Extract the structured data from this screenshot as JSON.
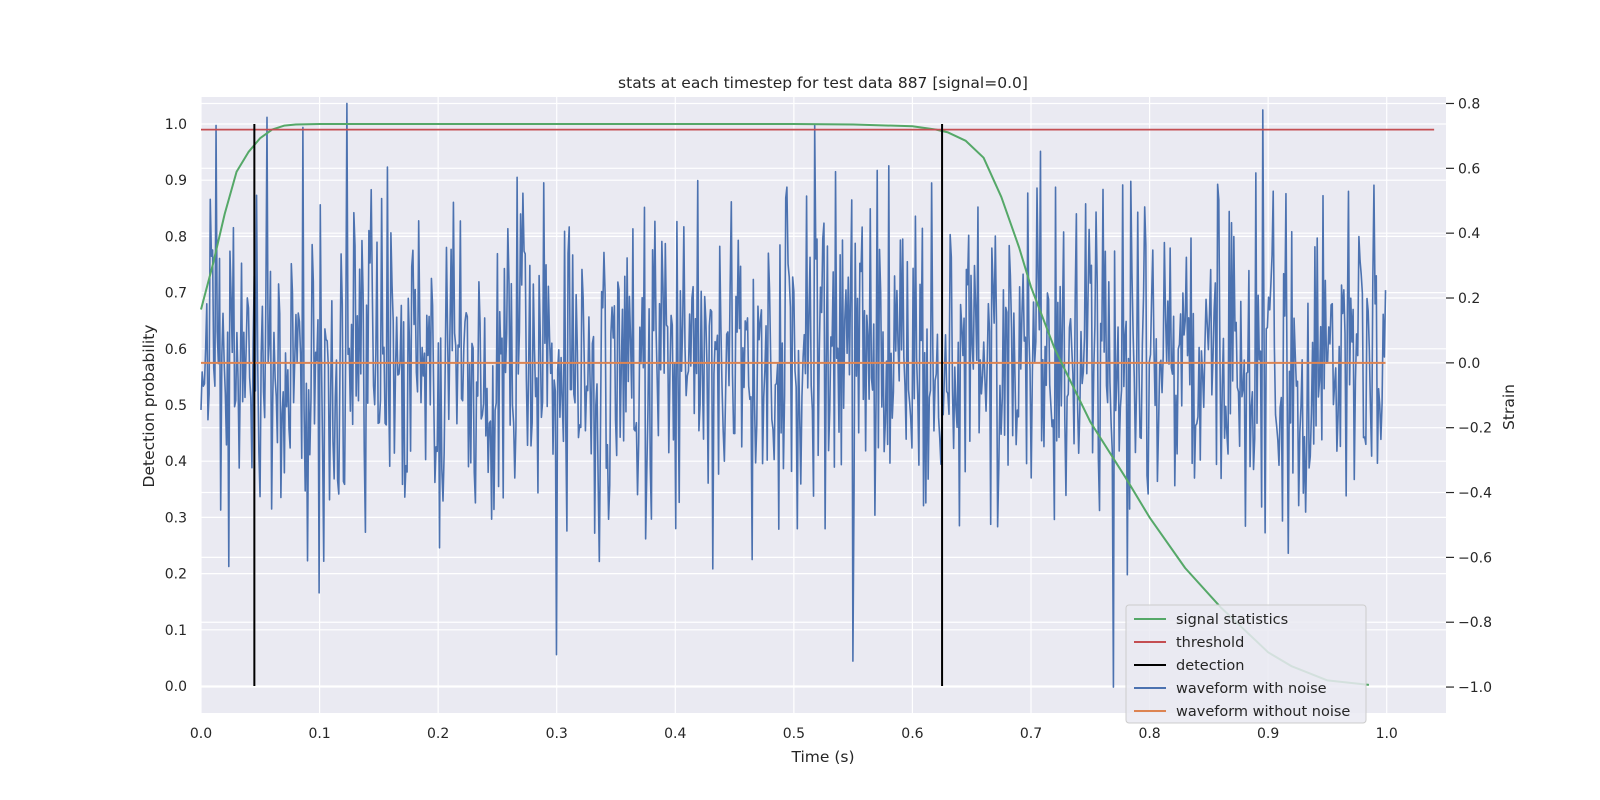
{
  "chart_data": {
    "type": "line",
    "title": "stats at each timestep for test data 887 [signal=0.0]",
    "xlabel": "Time (s)",
    "ylabel_left": "Detection probability",
    "ylabel_right": "Strain",
    "xlim": [
      0.0,
      1.05
    ],
    "ylim_left": [
      -0.048,
      1.048
    ],
    "ylim_right": [
      -1.08,
      0.82
    ],
    "x_ticks": [
      "0.0",
      "0.1",
      "0.2",
      "0.3",
      "0.4",
      "0.5",
      "0.6",
      "0.7",
      "0.8",
      "0.9",
      "1.0"
    ],
    "y_ticks_left": [
      "0.0",
      "0.1",
      "0.2",
      "0.3",
      "0.4",
      "0.5",
      "0.6",
      "0.7",
      "0.8",
      "0.9",
      "1.0"
    ],
    "y_ticks_right": [
      "−1.0",
      "−0.8",
      "−0.6",
      "−0.4",
      "−0.2",
      "0.0",
      "0.2",
      "0.4",
      "0.6",
      "0.8"
    ],
    "grid": true,
    "legend_position": "bottom-right",
    "colors": {
      "signal_statistics": "#55a868",
      "threshold": "#c44e52",
      "detection": "#000000",
      "waveform_with_noise": "#4c72b0",
      "waveform_without_noise": "#dd8452",
      "plot_background": "#eaeaf2",
      "grid": "#ffffff"
    },
    "series": [
      {
        "name": "signal statistics",
        "axis": "left",
        "x": [
          0.0,
          0.01,
          0.02,
          0.03,
          0.04,
          0.05,
          0.06,
          0.07,
          0.08,
          0.1,
          0.2,
          0.3,
          0.4,
          0.5,
          0.55,
          0.6,
          0.62,
          0.63,
          0.645,
          0.66,
          0.675,
          0.69,
          0.7,
          0.72,
          0.75,
          0.78,
          0.8,
          0.83,
          0.86,
          0.88,
          0.9,
          0.92,
          0.95,
          0.985
        ],
        "y": [
          0.67,
          0.75,
          0.84,
          0.915,
          0.95,
          0.975,
          0.99,
          0.997,
          0.999,
          1.0,
          1.0,
          1.0,
          1.0,
          1.0,
          0.999,
          0.996,
          0.99,
          0.985,
          0.97,
          0.94,
          0.87,
          0.78,
          0.71,
          0.6,
          0.47,
          0.37,
          0.3,
          0.21,
          0.14,
          0.1,
          0.06,
          0.035,
          0.01,
          0.002
        ]
      },
      {
        "name": "threshold",
        "axis": "left",
        "x": [
          0.0,
          1.04
        ],
        "y": [
          0.99,
          0.99
        ]
      },
      {
        "name": "detection",
        "axis": "left",
        "x": [
          0.045,
          0.625
        ],
        "ymin": 0.0,
        "ymax": 1.0
      },
      {
        "name": "waveform with noise",
        "axis": "right",
        "x_range": [
          0.0,
          0.999
        ],
        "samples": 1024,
        "noise_std": 0.25,
        "noise_range": [
          -0.98,
          0.8
        ],
        "noted_extremes": [
          {
            "x": 0.123,
            "y": 0.8
          },
          {
            "x": 0.3,
            "y": -0.9
          },
          {
            "x": 0.55,
            "y": -0.92
          },
          {
            "x": 0.77,
            "y": -1.0
          },
          {
            "x": 0.895,
            "y": 0.78
          }
        ]
      },
      {
        "name": "waveform without noise",
        "axis": "right",
        "x": [
          0.0,
          0.999
        ],
        "y": [
          0.0,
          0.0
        ]
      }
    ]
  }
}
